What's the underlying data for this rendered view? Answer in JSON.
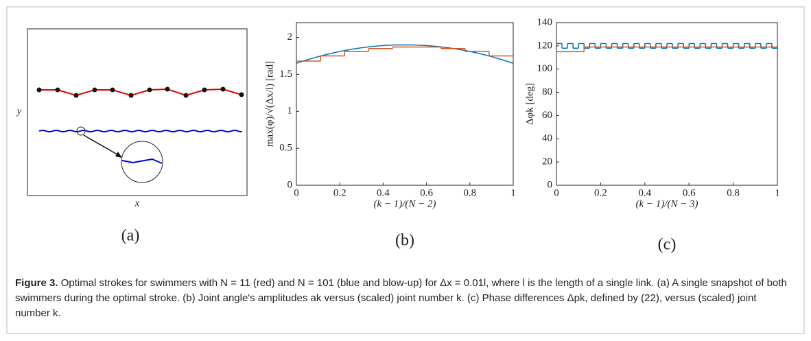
{
  "panel_a": {
    "xlabel": "x",
    "ylabel": "y",
    "label": "(a)"
  },
  "chart_data": [
    {
      "type": "line",
      "xlabel": "(k − 1)/(N − 2)",
      "ylabel": "max(φ)/√(Δx/l) [rad]",
      "label": "(b)",
      "xlim": [
        0,
        1
      ],
      "xticks": [
        0,
        0.2,
        0.4,
        0.6,
        0.8,
        1
      ],
      "ylim": [
        0,
        2.2
      ],
      "yticks": [
        0,
        0.5,
        1,
        1.5,
        2
      ],
      "series": [
        {
          "color": "#0072bd",
          "drawstyle": "line",
          "x": [
            0,
            0.05,
            0.1,
            0.15,
            0.2,
            0.25,
            0.3,
            0.35,
            0.4,
            0.45,
            0.5,
            0.55,
            0.6,
            0.65,
            0.7,
            0.75,
            0.8,
            0.85,
            0.9,
            0.95,
            1
          ],
          "values": [
            1.65,
            1.6975,
            1.74,
            1.7775,
            1.81,
            1.8375,
            1.86,
            1.8775,
            1.89,
            1.8975,
            1.9,
            1.8975,
            1.89,
            1.8775,
            1.86,
            1.8375,
            1.81,
            1.7775,
            1.74,
            1.6975,
            1.65
          ]
        },
        {
          "color": "#d95319",
          "drawstyle": "steps-post",
          "x": [
            0,
            0.111,
            0.222,
            0.333,
            0.444,
            0.556,
            0.667,
            0.778,
            0.889,
            1
          ],
          "values": [
            1.68,
            1.75,
            1.81,
            1.85,
            1.87,
            1.87,
            1.85,
            1.81,
            1.75,
            1.75
          ]
        }
      ]
    },
    {
      "type": "line",
      "xlabel": "(k − 1)/(N − 3)",
      "ylabel": "Δφk [deg]",
      "label": "(c)",
      "xlim": [
        0,
        1
      ],
      "xticks": [
        0,
        0.2,
        0.4,
        0.6,
        0.8,
        1
      ],
      "ylim": [
        0,
        140
      ],
      "yticks": [
        0,
        20,
        40,
        60,
        80,
        100,
        120,
        140
      ],
      "series": [
        {
          "color": "#0072bd",
          "drawstyle": "steps-post",
          "x": [
            0,
            0.025,
            0.05,
            0.075,
            0.1,
            0.125,
            0.15,
            0.175,
            0.2,
            0.225,
            0.25,
            0.275,
            0.3,
            0.325,
            0.35,
            0.375,
            0.4,
            0.425,
            0.45,
            0.475,
            0.5,
            0.525,
            0.55,
            0.575,
            0.6,
            0.625,
            0.65,
            0.675,
            0.7,
            0.725,
            0.75,
            0.775,
            0.8,
            0.825,
            0.85,
            0.875,
            0.9,
            0.925,
            0.95,
            0.975,
            1
          ],
          "values": [
            122,
            118,
            122,
            118,
            122,
            118,
            122,
            118,
            122,
            118,
            122,
            118,
            122,
            118,
            122,
            118,
            122,
            118,
            122,
            118,
            122,
            118,
            122,
            118,
            122,
            118,
            122,
            118,
            122,
            118,
            122,
            118,
            122,
            118,
            122,
            118,
            122,
            118,
            122,
            118,
            122
          ]
        },
        {
          "color": "#d95319",
          "drawstyle": "steps-post",
          "x": [
            0,
            0.125,
            1
          ],
          "values": [
            115,
            119,
            119
          ]
        }
      ]
    }
  ],
  "caption": {
    "label": "Figure 3.",
    "text": "Optimal strokes for swimmers with N = 11 (red) and N = 101 (blue and blow-up) for Δx = 0.01l, where l is the length of a single link. (a) A single snapshot of both swimmers during the optimal stroke. (b) Joint angle's amplitudes ak versus (scaled) joint number k. (c) Phase differences Δpk, defined by (22), versus (scaled) joint number k."
  }
}
